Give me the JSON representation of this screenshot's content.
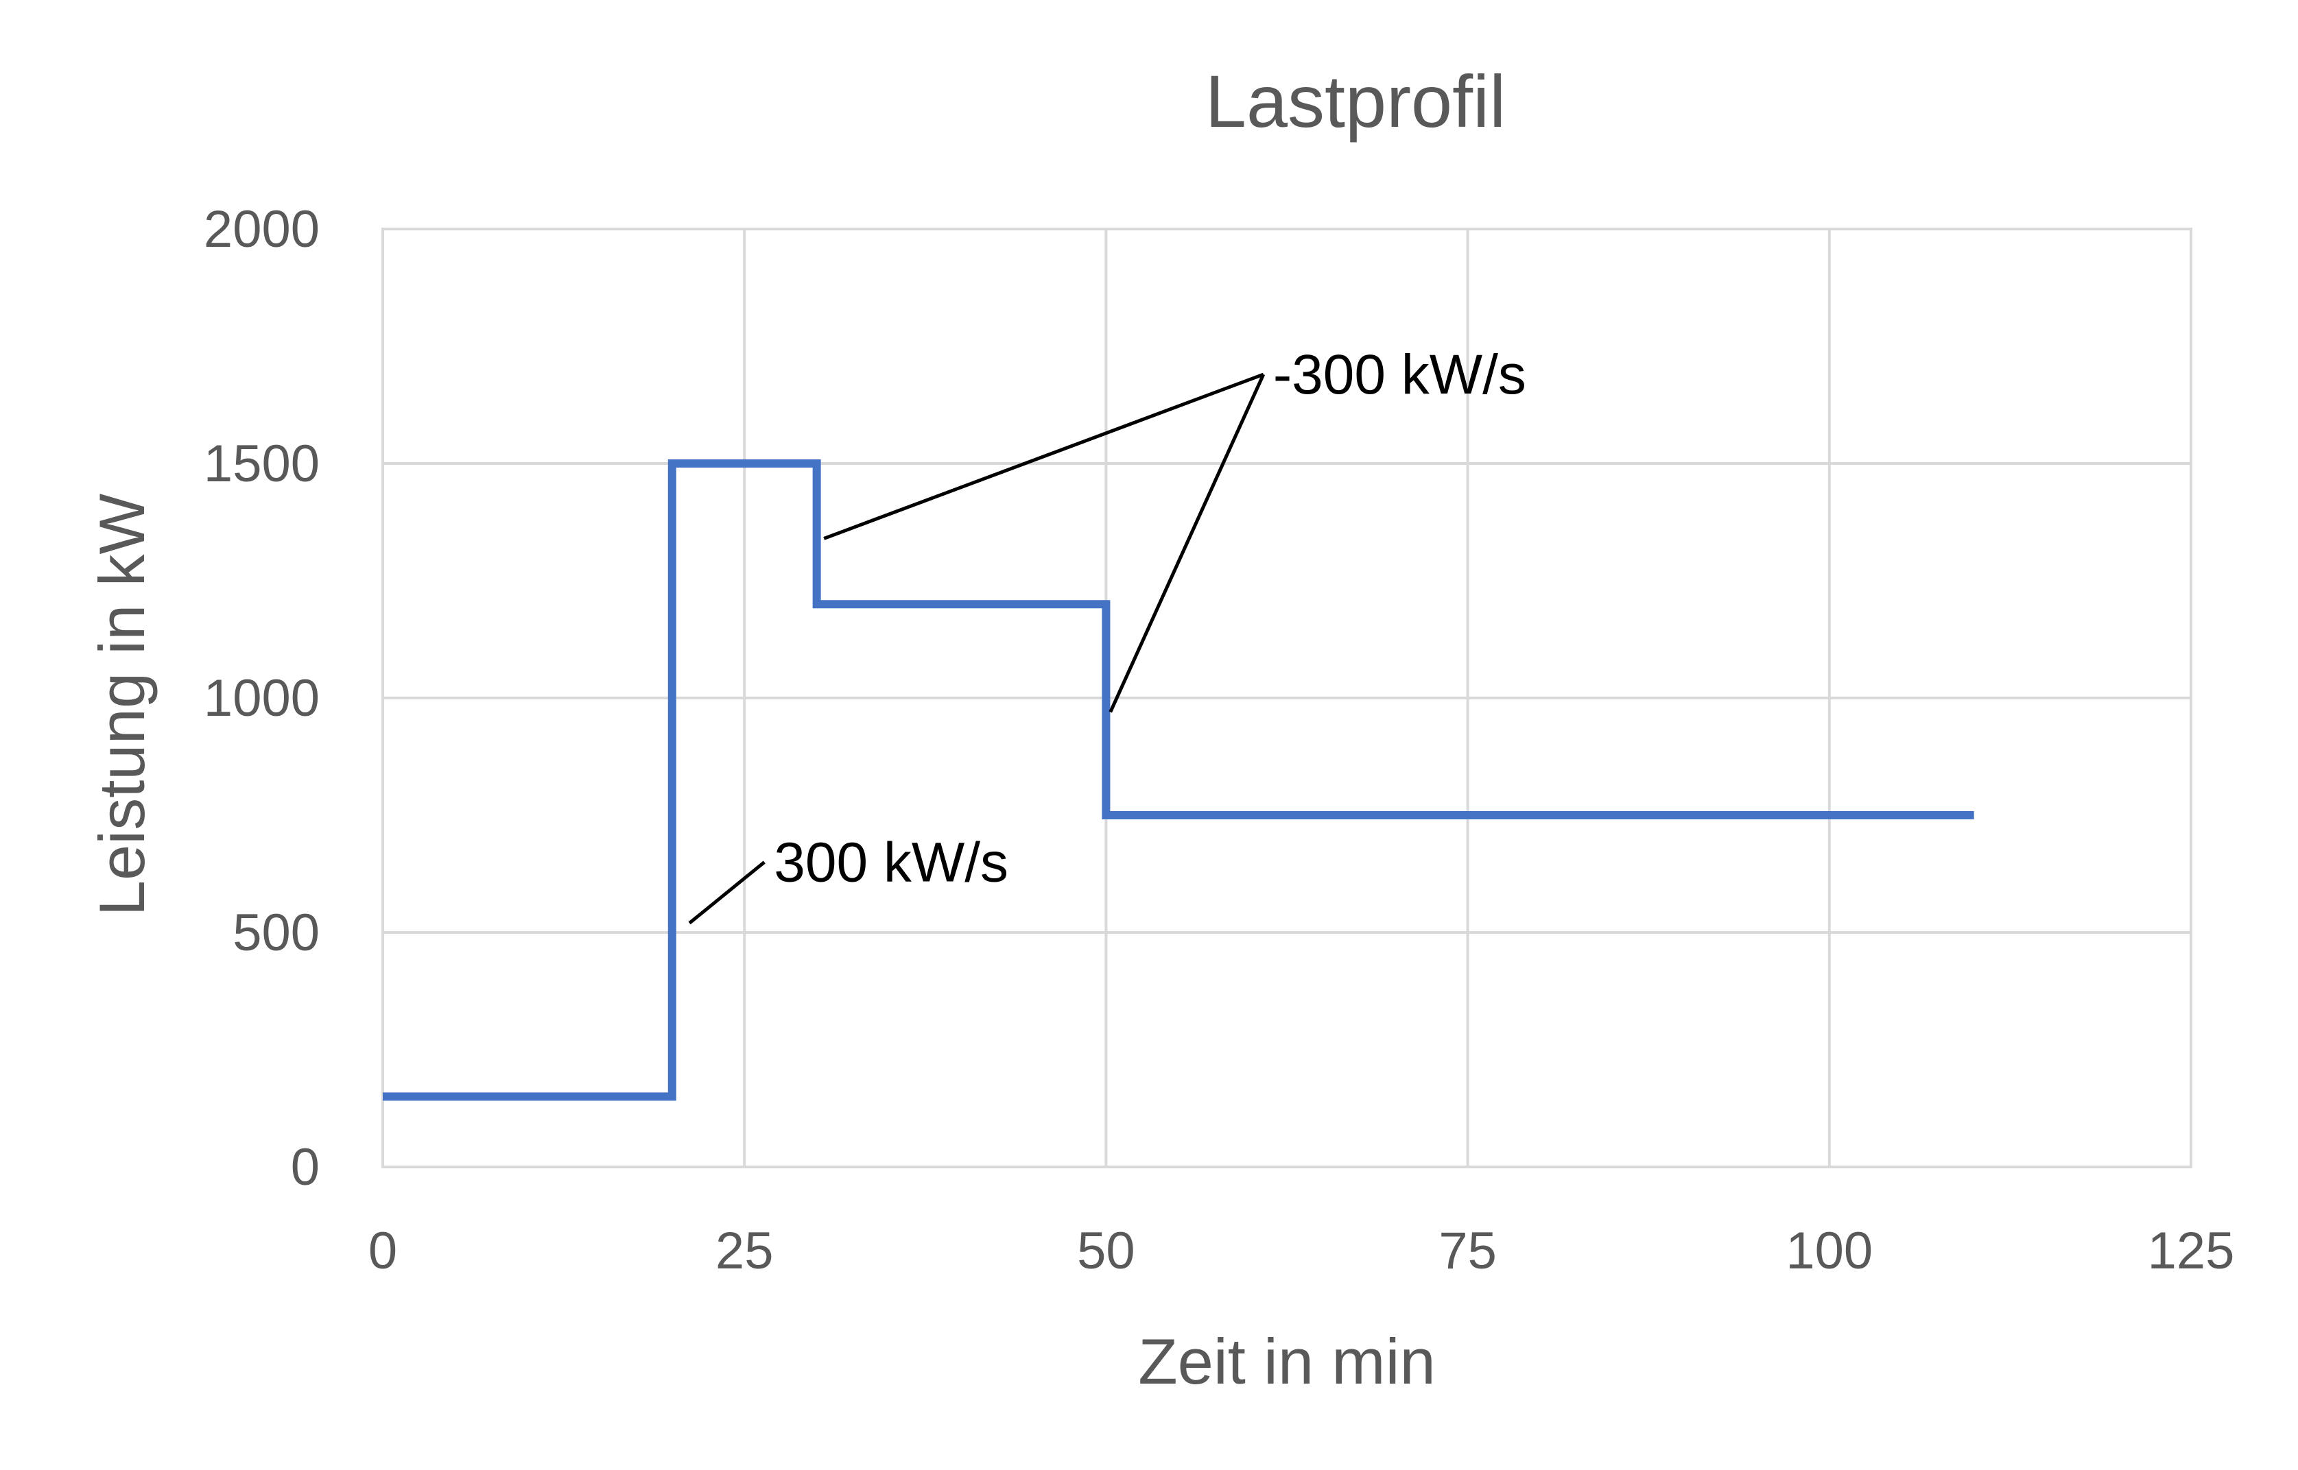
{
  "chart_data": {
    "type": "line",
    "title": "Lastprofil",
    "xlabel": "Zeit in min",
    "ylabel": "Leistung in kW",
    "xlim": [
      0,
      125
    ],
    "ylim": [
      0,
      2000
    ],
    "x_ticks": [
      0,
      25,
      50,
      75,
      100,
      125
    ],
    "y_ticks": [
      0,
      500,
      1000,
      1500,
      2000
    ],
    "grid": true,
    "legend": "none",
    "colors": {
      "series": "#4472c4",
      "grid": "#d9d9d9",
      "text": "#595959",
      "annotation": "#000000"
    },
    "series": [
      {
        "x": [
          0,
          20,
          20,
          30,
          30,
          50,
          50,
          110
        ],
        "y": [
          150,
          150,
          1500,
          1500,
          1200,
          1200,
          750,
          750
        ]
      }
    ],
    "annotations": [
      {
        "text": "300 kW/s",
        "label_at": [
          26,
          650
        ],
        "pointers": [
          [
            21.2,
            520
          ]
        ]
      },
      {
        "text": "-300 kW/s",
        "label_at": [
          60.5,
          1690
        ],
        "pointers": [
          [
            30.5,
            1340
          ],
          [
            50.3,
            970
          ]
        ]
      }
    ]
  }
}
